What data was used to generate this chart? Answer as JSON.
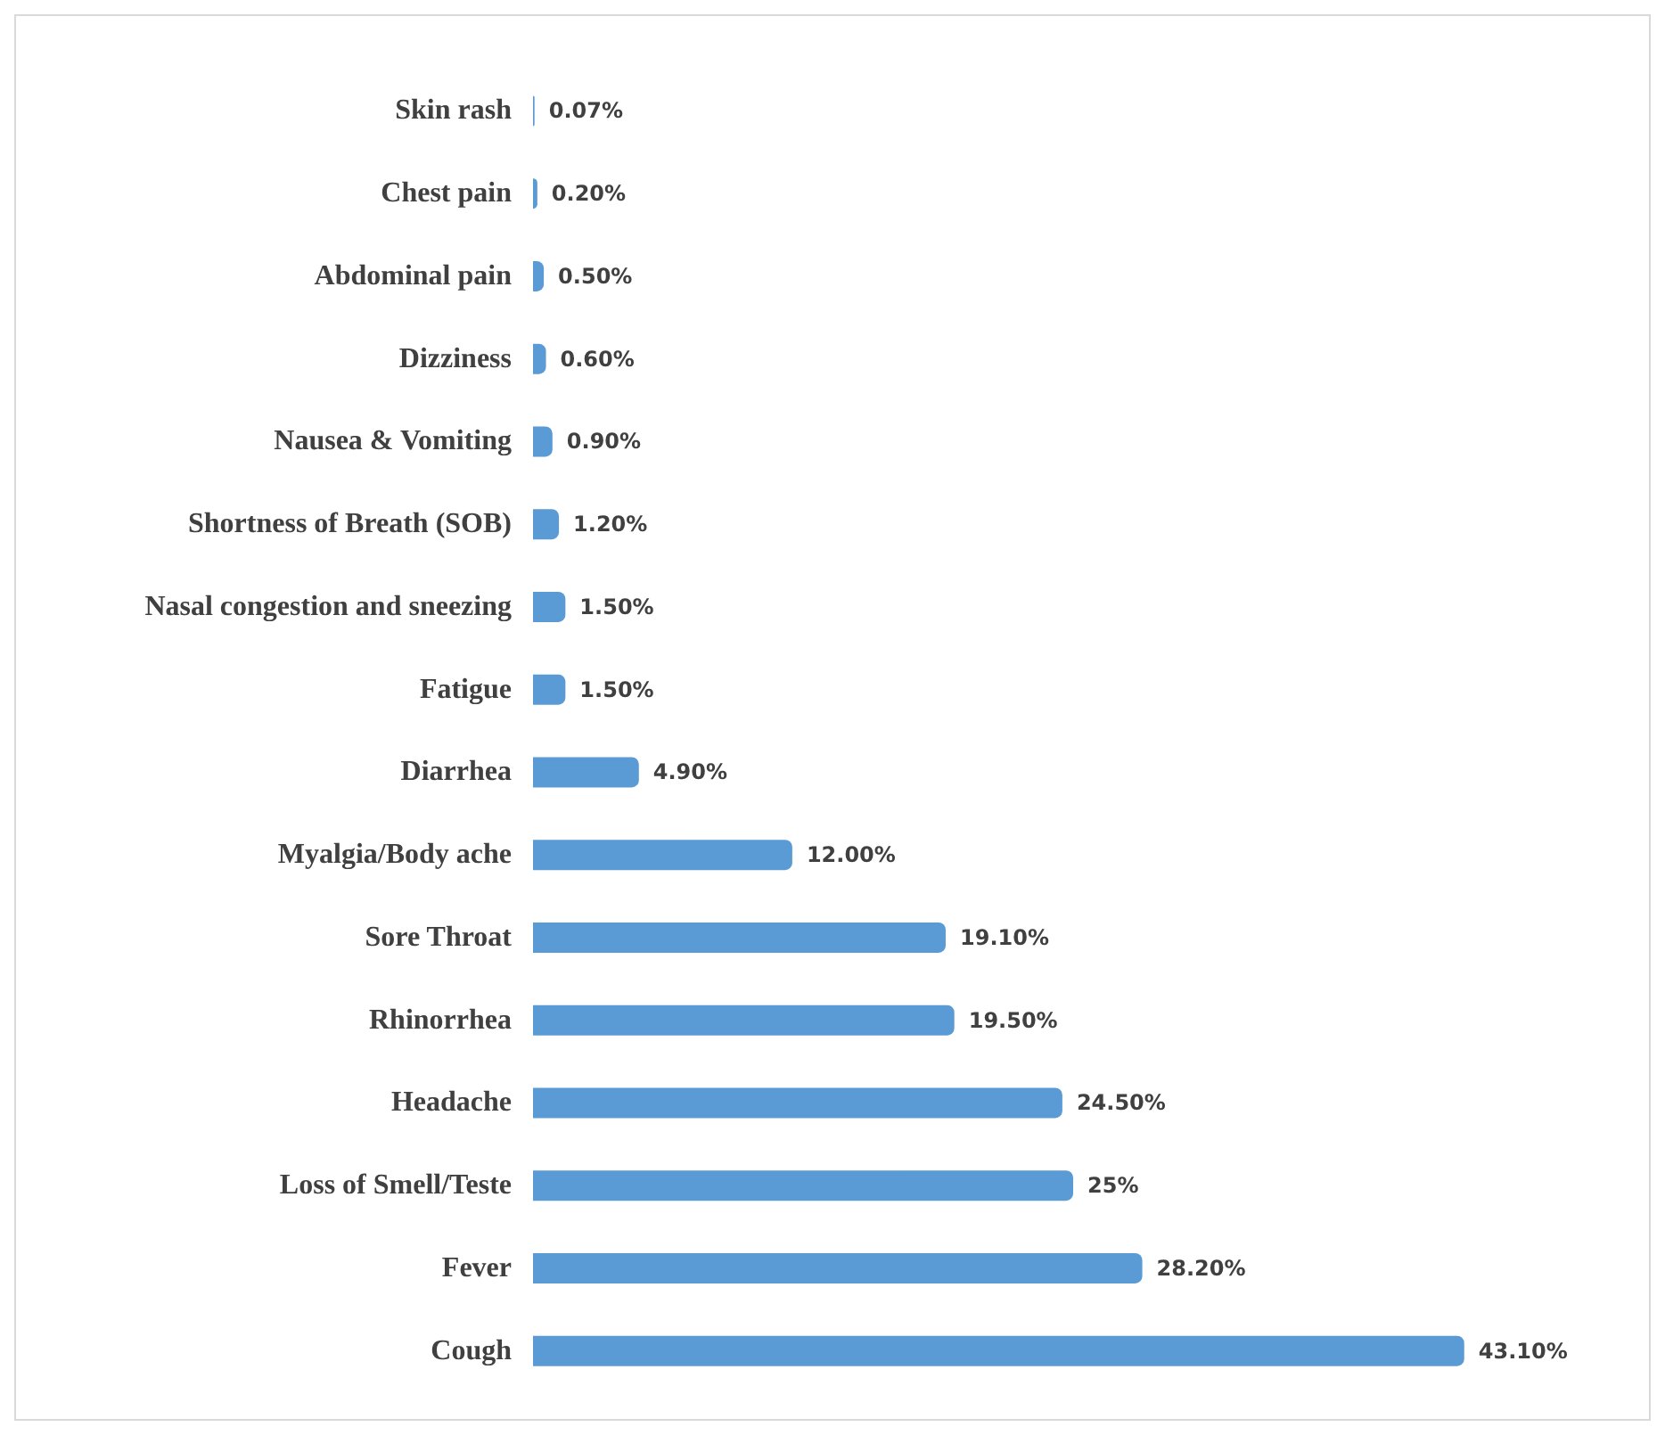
{
  "chart_data": {
    "type": "bar",
    "orientation": "horizontal",
    "categories": [
      "Skin rash",
      "Chest pain",
      "Abdominal pain",
      "Dizziness",
      "Nausea & Vomiting",
      "Shortness of Breath (SOB)",
      "Nasal congestion and sneezing",
      "Fatigue",
      "Diarrhea",
      "Myalgia/Body ache",
      "Sore Throat",
      "Rhinorrhea",
      "Headache",
      "Loss of Smell/Teste",
      "Fever",
      "Cough"
    ],
    "values": [
      0.07,
      0.2,
      0.5,
      0.6,
      0.9,
      1.2,
      1.5,
      1.5,
      4.9,
      12,
      19.1,
      19.5,
      24.5,
      25,
      28.2,
      43.1
    ],
    "value_labels": [
      "0.07%",
      "0.20%",
      "0.50%",
      "0.60%",
      "0.90%",
      "1.20%",
      "1.50%",
      "1.50%",
      "4.90%",
      "12.00%",
      "19.10%",
      "19.50%",
      "24.50%",
      "25%",
      "28.20%",
      "43.10%"
    ],
    "color": "#5b9bd5"
  }
}
